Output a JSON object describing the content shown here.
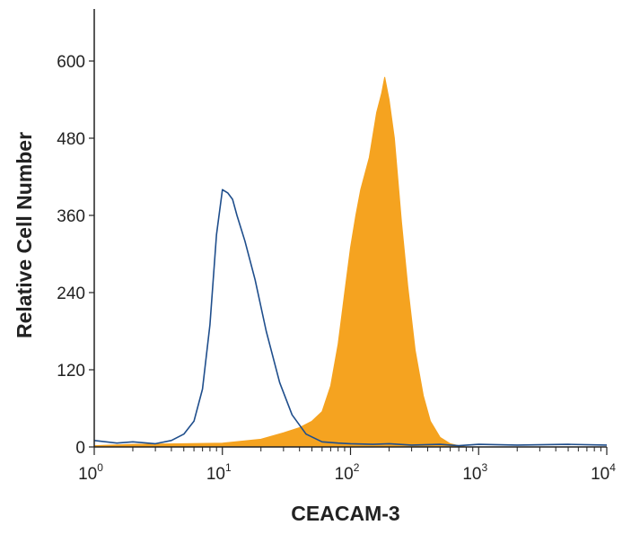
{
  "chart_data": {
    "type": "area",
    "title": "",
    "xlabel": "CEACAM-3",
    "ylabel": "Relative Cell Number",
    "x_scale": "log",
    "xlim": [
      1,
      10000
    ],
    "ylim": [
      0,
      660
    ],
    "x_ticks": [
      {
        "value": 1,
        "base": "10",
        "exp": "0"
      },
      {
        "value": 10,
        "base": "10",
        "exp": "1"
      },
      {
        "value": 100,
        "base": "10",
        "exp": "2"
      },
      {
        "value": 1000,
        "base": "10",
        "exp": "3"
      },
      {
        "value": 10000,
        "base": "10",
        "exp": "4"
      }
    ],
    "y_ticks": [
      {
        "value": 0,
        "label": "0"
      },
      {
        "value": 120,
        "label": "120"
      },
      {
        "value": 240,
        "label": "240"
      },
      {
        "value": 360,
        "label": "360"
      },
      {
        "value": 480,
        "label": "480"
      },
      {
        "value": 600,
        "label": "600"
      }
    ],
    "grid": false,
    "legend": "none",
    "series": [
      {
        "style": "outline",
        "color": "#1f4e8c",
        "points": [
          [
            1,
            10
          ],
          [
            1.5,
            6
          ],
          [
            2,
            8
          ],
          [
            3,
            5
          ],
          [
            4,
            10
          ],
          [
            5,
            20
          ],
          [
            6,
            40
          ],
          [
            7,
            90
          ],
          [
            8,
            190
          ],
          [
            9,
            330
          ],
          [
            10,
            400
          ],
          [
            11,
            395
          ],
          [
            12,
            385
          ],
          [
            13,
            360
          ],
          [
            15,
            320
          ],
          [
            18,
            260
          ],
          [
            22,
            180
          ],
          [
            28,
            100
          ],
          [
            35,
            50
          ],
          [
            45,
            20
          ],
          [
            60,
            8
          ],
          [
            80,
            6
          ],
          [
            100,
            5
          ],
          [
            150,
            4
          ],
          [
            200,
            5
          ],
          [
            300,
            3
          ],
          [
            500,
            4
          ],
          [
            700,
            2
          ],
          [
            1000,
            4
          ],
          [
            2000,
            3
          ],
          [
            5000,
            4
          ],
          [
            10000,
            3
          ]
        ]
      },
      {
        "style": "filled",
        "color": "#f5a320",
        "points": [
          [
            1,
            2
          ],
          [
            2,
            4
          ],
          [
            5,
            5
          ],
          [
            10,
            6
          ],
          [
            20,
            12
          ],
          [
            30,
            22
          ],
          [
            40,
            30
          ],
          [
            50,
            40
          ],
          [
            60,
            55
          ],
          [
            70,
            95
          ],
          [
            80,
            160
          ],
          [
            90,
            240
          ],
          [
            100,
            310
          ],
          [
            110,
            360
          ],
          [
            120,
            400
          ],
          [
            140,
            450
          ],
          [
            160,
            520
          ],
          [
            175,
            550
          ],
          [
            185,
            575
          ],
          [
            200,
            540
          ],
          [
            220,
            480
          ],
          [
            250,
            350
          ],
          [
            280,
            250
          ],
          [
            320,
            150
          ],
          [
            370,
            80
          ],
          [
            420,
            40
          ],
          [
            500,
            15
          ],
          [
            600,
            5
          ],
          [
            700,
            2
          ],
          [
            800,
            0
          ]
        ]
      }
    ]
  }
}
